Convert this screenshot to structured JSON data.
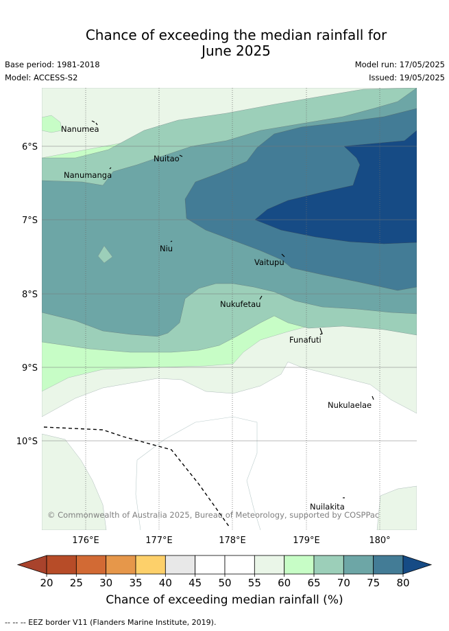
{
  "title": {
    "line1": "Chance of exceeding the median rainfall for",
    "line2": "June 2025"
  },
  "meta": {
    "base_period": "Base period: 1981-2018",
    "model": "Model: ACCESS-S2",
    "model_run": "Model run: 17/05/2025",
    "issued": "Issued: 19/05/2025"
  },
  "map": {
    "lon_ticks": [
      "176°E",
      "177°E",
      "178°E",
      "179°E",
      "180°"
    ],
    "lat_ticks": [
      "6°S",
      "7°S",
      "8°S",
      "9°S",
      "10°S"
    ],
    "places": [
      {
        "name": "Nanumea",
        "id": "nanumea"
      },
      {
        "name": "Nuitao",
        "id": "nuitao"
      },
      {
        "name": "Nanumanga",
        "id": "nanumanga"
      },
      {
        "name": "Niu",
        "id": "niu"
      },
      {
        "name": "Vaitupu",
        "id": "vaitupu"
      },
      {
        "name": "Nukufetau",
        "id": "nukufetau"
      },
      {
        "name": "Funafuti",
        "id": "funafuti"
      },
      {
        "name": "Nukulaelae",
        "id": "nukulaelae"
      },
      {
        "name": "Nuilakita",
        "id": "nuilakita"
      }
    ],
    "copyright": "© Commonwealth of Australia 2025, Bureau of Meteorology, supported by COSPPac"
  },
  "colorbar": {
    "ticks": [
      "20",
      "25",
      "30",
      "35",
      "40",
      "45",
      "50",
      "55",
      "60",
      "65",
      "70",
      "75",
      "80"
    ],
    "colors": {
      "under": "#a9432c",
      "bins": [
        "#b74c28",
        "#d26a34",
        "#e6974a",
        "#fdd06a",
        "#e8e8e8",
        "#ffffff",
        "#ffffff",
        "#eaf6e8",
        "#c7fdc6",
        "#9ccfb9",
        "#6da6a6",
        "#437c96"
      ],
      "over": "#164b85"
    },
    "label": "Chance of exceeding median rainfall (%)"
  },
  "legend": {
    "eez": "--  --  -- EEZ border V11 (Flanders Marine Institute, 2019)."
  },
  "palette": {
    "c55_60": "#eaf6e8",
    "c60_65": "#c7fdc6",
    "c65_70": "#9ccfb9",
    "c70_75": "#6da6a6",
    "c75_80": "#437c96",
    "c80_plus": "#164b85"
  }
}
